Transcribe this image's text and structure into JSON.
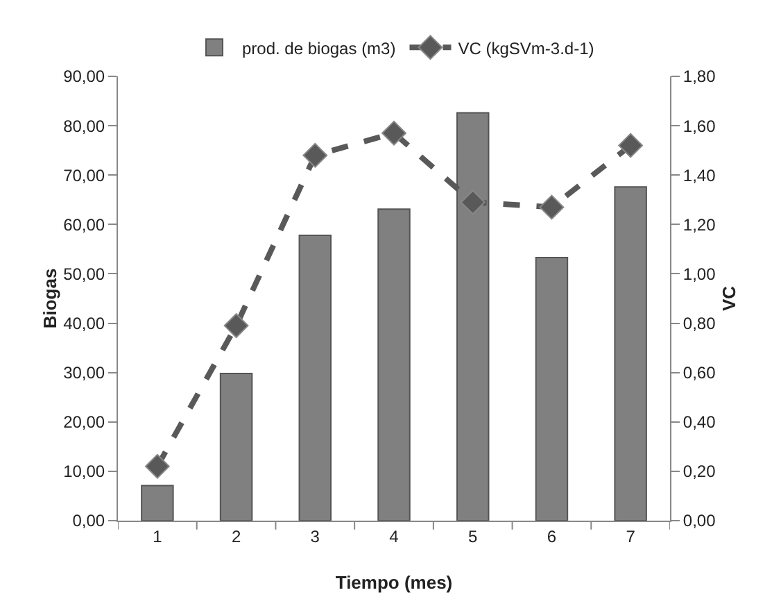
{
  "chart_data": {
    "type": "bar",
    "xlabel": "Tiempo (mes)",
    "ylabel": "Biogas",
    "y2label": "VC",
    "categories": [
      "1",
      "2",
      "3",
      "4",
      "5",
      "6",
      "7"
    ],
    "series": [
      {
        "name": "prod. de biogas (m3)",
        "color": "#808080",
        "values": [
          7.1,
          29.8,
          57.8,
          63.1,
          82.6,
          53.3,
          67.6
        ]
      },
      {
        "name": "VC (kgSVm-3.d-1)",
        "type": "line",
        "axis": "y2",
        "color": "#595959",
        "line_style": "dashed",
        "marker": "diamond",
        "values": [
          0.22,
          0.79,
          1.48,
          1.57,
          1.29,
          1.27,
          1.52
        ]
      }
    ],
    "ylim": [
      0,
      90
    ],
    "yticks": [
      {
        "value": 0,
        "label": "0,00"
      },
      {
        "value": 10,
        "label": "10,00"
      },
      {
        "value": 20,
        "label": "20,00"
      },
      {
        "value": 30,
        "label": "30,00"
      },
      {
        "value": 40,
        "label": "40,00"
      },
      {
        "value": 50,
        "label": "50,00"
      },
      {
        "value": 60,
        "label": "60,00"
      },
      {
        "value": 70,
        "label": "70,00"
      },
      {
        "value": 80,
        "label": "80,00"
      },
      {
        "value": 90,
        "label": "90,00"
      }
    ],
    "y2lim": [
      0,
      1.8
    ],
    "y2ticks": [
      {
        "value": 0,
        "label": "0,00"
      },
      {
        "value": 0.2,
        "label": "0,20"
      },
      {
        "value": 0.4,
        "label": "0,40"
      },
      {
        "value": 0.6,
        "label": "0,60"
      },
      {
        "value": 0.8,
        "label": "0,80"
      },
      {
        "value": 1,
        "label": "1,00"
      },
      {
        "value": 1.2,
        "label": "1,20"
      },
      {
        "value": 1.4,
        "label": "1,40"
      },
      {
        "value": 1.6,
        "label": "1,60"
      },
      {
        "value": 1.8,
        "label": "1,80"
      }
    ],
    "grid": false,
    "legend": "top"
  }
}
